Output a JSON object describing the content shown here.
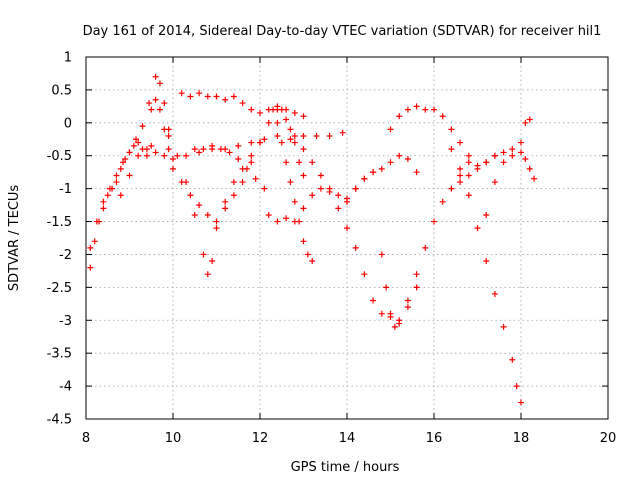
{
  "chart_data": {
    "type": "scatter",
    "title": "Day 161 of 2014, Sidereal Day-to-day VTEC variation (SDTVAR) for receiver hil1",
    "xlabel": "GPS time / hours",
    "ylabel": "SDTVAR / TECUs",
    "xlim": [
      8,
      20
    ],
    "ylim": [
      -4.5,
      1
    ],
    "xticks": [
      8,
      10,
      12,
      14,
      16,
      18,
      20
    ],
    "yticks": [
      1,
      0.5,
      0,
      -0.5,
      -1,
      -1.5,
      -2,
      -2.5,
      -3,
      -3.5,
      -4,
      -4.5
    ],
    "xtick_labels": [
      "8",
      "10",
      "12",
      "14",
      "16",
      "18",
      "20"
    ],
    "ytick_labels": [
      "1",
      "0.5",
      "0",
      "-0.5",
      "-1",
      "-1.5",
      "-2",
      "-2.5",
      "-3",
      "-3.5",
      "-4",
      "-4.5"
    ],
    "grid": true,
    "marker": "+",
    "color": "#ff0000",
    "series": [
      {
        "x": [
          8.1,
          8.2,
          8.3,
          8.4,
          8.5,
          8.6,
          8.7,
          8.8,
          8.9,
          9.0,
          9.1,
          9.2,
          9.3,
          9.4,
          9.5
        ],
        "y": [
          -2.2,
          -1.8,
          -1.5,
          -1.3,
          -1.1,
          -1.0,
          -0.9,
          -0.7,
          -0.55,
          -0.45,
          -0.35,
          -0.3,
          -0.4,
          -0.5,
          -0.35
        ]
      },
      {
        "x": [
          8.1,
          8.25,
          8.4,
          8.55,
          8.7,
          8.85,
          9.0,
          9.15,
          9.3,
          9.45,
          9.6,
          9.7,
          9.8,
          9.9
        ],
        "y": [
          -1.9,
          -1.5,
          -1.2,
          -1.0,
          -0.8,
          -0.6,
          -0.45,
          -0.25,
          -0.05,
          0.3,
          0.7,
          0.6,
          0.3,
          -0.1
        ]
      },
      {
        "x": [
          9.9,
          10.1,
          10.3,
          10.5,
          10.7,
          10.8,
          10.9,
          11.0,
          11.2,
          11.4,
          11.6,
          11.8,
          12.0
        ],
        "y": [
          -0.2,
          -0.5,
          -0.9,
          -1.4,
          -2.0,
          -2.3,
          -2.1,
          -1.6,
          -1.2,
          -0.9,
          -0.7,
          -0.5,
          -0.3
        ]
      },
      {
        "x": [
          9.5,
          9.6,
          9.7,
          9.8,
          9.9,
          10.0,
          10.2,
          10.4,
          10.6,
          10.8
        ],
        "y": [
          0.2,
          0.35,
          0.2,
          -0.1,
          -0.4,
          -0.7,
          -0.9,
          -1.1,
          -1.25,
          -1.4
        ]
      },
      {
        "x": [
          8.8,
          9.0,
          9.2,
          9.4,
          9.6,
          9.8,
          10.0,
          10.3,
          10.6,
          10.9,
          11.2,
          11.5,
          11.8,
          12.1,
          12.4,
          12.7,
          13.0,
          13.3,
          13.6,
          13.9
        ],
        "y": [
          -1.1,
          -0.8,
          -0.5,
          -0.4,
          -0.45,
          -0.5,
          -0.55,
          -0.5,
          -0.45,
          -0.4,
          -0.4,
          -0.35,
          -0.3,
          -0.25,
          -0.2,
          -0.25,
          -0.2,
          -0.2,
          -0.2,
          -0.15
        ]
      },
      {
        "x": [
          10.2,
          10.4,
          10.6,
          10.8,
          11.0,
          11.2,
          11.4,
          11.6,
          11.8,
          12.0,
          12.2,
          12.4,
          12.6,
          12.8,
          13.0
        ],
        "y": [
          0.45,
          0.4,
          0.45,
          0.4,
          0.4,
          0.35,
          0.4,
          0.3,
          0.2,
          0.15,
          0.2,
          0.25,
          0.2,
          0.15,
          0.1
        ]
      },
      {
        "x": [
          10.5,
          10.7,
          10.9,
          11.1,
          11.3,
          11.5,
          11.7,
          11.9,
          12.1
        ],
        "y": [
          -0.4,
          -0.4,
          -0.35,
          -0.4,
          -0.45,
          -0.55,
          -0.7,
          -0.85,
          -1.0
        ]
      },
      {
        "x": [
          11.0,
          11.2,
          11.4,
          11.6,
          11.8,
          12.0,
          12.2,
          12.4,
          12.5,
          12.6,
          12.7,
          12.8,
          12.9,
          13.0
        ],
        "y": [
          -1.5,
          -1.3,
          -1.1,
          -0.9,
          -0.6,
          -0.3,
          0.0,
          0.2,
          0.2,
          0.05,
          -0.1,
          -0.3,
          -0.6,
          -0.8
        ]
      },
      {
        "x": [
          12.3,
          12.4,
          12.5,
          12.6,
          12.7,
          12.8,
          12.9,
          13.0,
          13.1,
          13.2
        ],
        "y": [
          0.2,
          0.0,
          -0.3,
          -0.6,
          -0.9,
          -1.2,
          -1.5,
          -1.8,
          -2.0,
          -2.1
        ]
      },
      {
        "x": [
          12.2,
          12.4,
          12.6,
          12.8,
          13.0,
          13.2,
          13.4,
          13.6,
          13.8,
          14.0,
          14.2,
          14.4,
          14.6
        ],
        "y": [
          -1.4,
          -1.5,
          -1.45,
          -1.5,
          -1.3,
          -1.1,
          -1.0,
          -1.05,
          -1.1,
          -1.15,
          -1.0,
          -0.85,
          -0.75
        ]
      },
      {
        "x": [
          12.8,
          13.0,
          13.2,
          13.4,
          13.6,
          13.8,
          14.0,
          14.2,
          14.4,
          14.6,
          14.8,
          15.0,
          15.2,
          15.4,
          15.6
        ],
        "y": [
          -0.2,
          -0.4,
          -0.6,
          -0.8,
          -1.0,
          -1.3,
          -1.6,
          -1.9,
          -2.3,
          -2.7,
          -2.9,
          -2.95,
          -3.05,
          -2.8,
          -2.5
        ]
      },
      {
        "x": [
          14.8,
          14.9,
          15.0,
          15.1,
          15.2,
          15.4,
          15.6,
          15.8,
          16.0,
          16.2,
          16.4,
          16.6,
          16.8
        ],
        "y": [
          -2.0,
          -2.5,
          -2.9,
          -3.1,
          -3.0,
          -2.7,
          -2.3,
          -1.9,
          -1.5,
          -1.2,
          -1.0,
          -0.8,
          -0.6
        ]
      },
      {
        "x": [
          14.0,
          14.2,
          14.4,
          14.6,
          14.8,
          15.0,
          15.2,
          15.4,
          15.6
        ],
        "y": [
          -1.2,
          -1.0,
          -0.85,
          -0.75,
          -0.7,
          -0.6,
          -0.5,
          -0.55,
          -0.75
        ]
      },
      {
        "x": [
          15.0,
          15.2,
          15.4,
          15.6,
          15.8,
          16.0,
          16.2,
          16.4,
          16.6,
          16.8,
          17.0,
          17.2,
          17.4
        ],
        "y": [
          -0.1,
          0.1,
          0.2,
          0.25,
          0.2,
          0.2,
          0.1,
          -0.1,
          -0.3,
          -0.5,
          -0.65,
          -0.6,
          -0.5
        ]
      },
      {
        "x": [
          16.4,
          16.6,
          16.8,
          17.0,
          17.2,
          17.4,
          17.6,
          17.8,
          17.9,
          18.0
        ],
        "y": [
          -0.4,
          -0.7,
          -1.1,
          -1.6,
          -2.1,
          -2.6,
          -3.1,
          -3.6,
          -4.0,
          -4.25
        ]
      },
      {
        "x": [
          16.6,
          16.8,
          17.0,
          17.2,
          17.4,
          17.6,
          17.8,
          18.0,
          18.1,
          18.2,
          18.3
        ],
        "y": [
          -0.9,
          -0.8,
          -0.7,
          -0.6,
          -0.5,
          -0.45,
          -0.4,
          -0.45,
          -0.55,
          -0.7,
          -0.85
        ]
      },
      {
        "x": [
          17.2,
          17.4,
          17.6,
          17.8,
          18.0,
          18.1,
          18.2
        ],
        "y": [
          -1.4,
          -0.9,
          -0.6,
          -0.5,
          -0.3,
          0.0,
          0.05
        ]
      }
    ]
  }
}
